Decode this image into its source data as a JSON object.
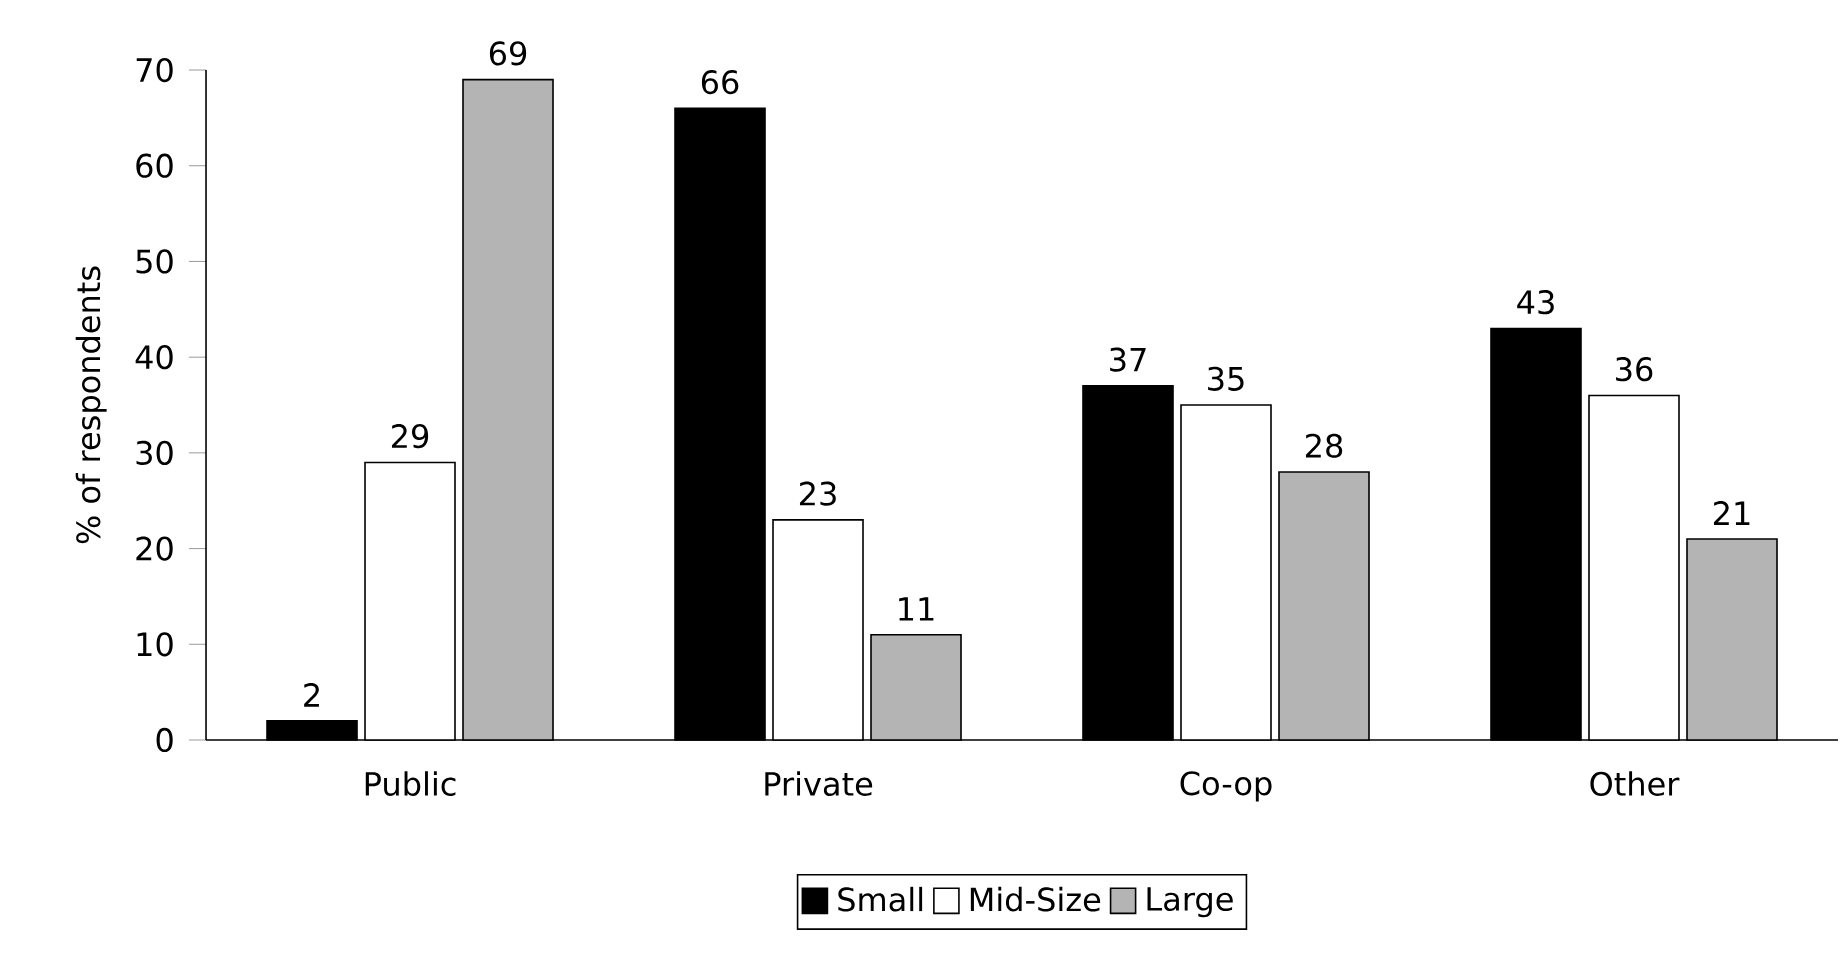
{
  "chart_data": {
    "type": "bar",
    "ylabel": "% of respondents",
    "categories": [
      "Public",
      "Private",
      "Co-op",
      "Other"
    ],
    "series": [
      {
        "name": "Small",
        "color": "#000000",
        "values": [
          2,
          66,
          37,
          43
        ]
      },
      {
        "name": "Mid-Size",
        "color": "#ffffff",
        "values": [
          29,
          23,
          35,
          36
        ]
      },
      {
        "name": "Large",
        "color": "#b4b4b4",
        "values": [
          69,
          11,
          28,
          21
        ]
      }
    ],
    "ylim": [
      0,
      70
    ],
    "yticks": [
      0,
      10,
      20,
      30,
      40,
      50,
      60,
      70
    ],
    "data_labels": true,
    "legend": "bottom"
  }
}
